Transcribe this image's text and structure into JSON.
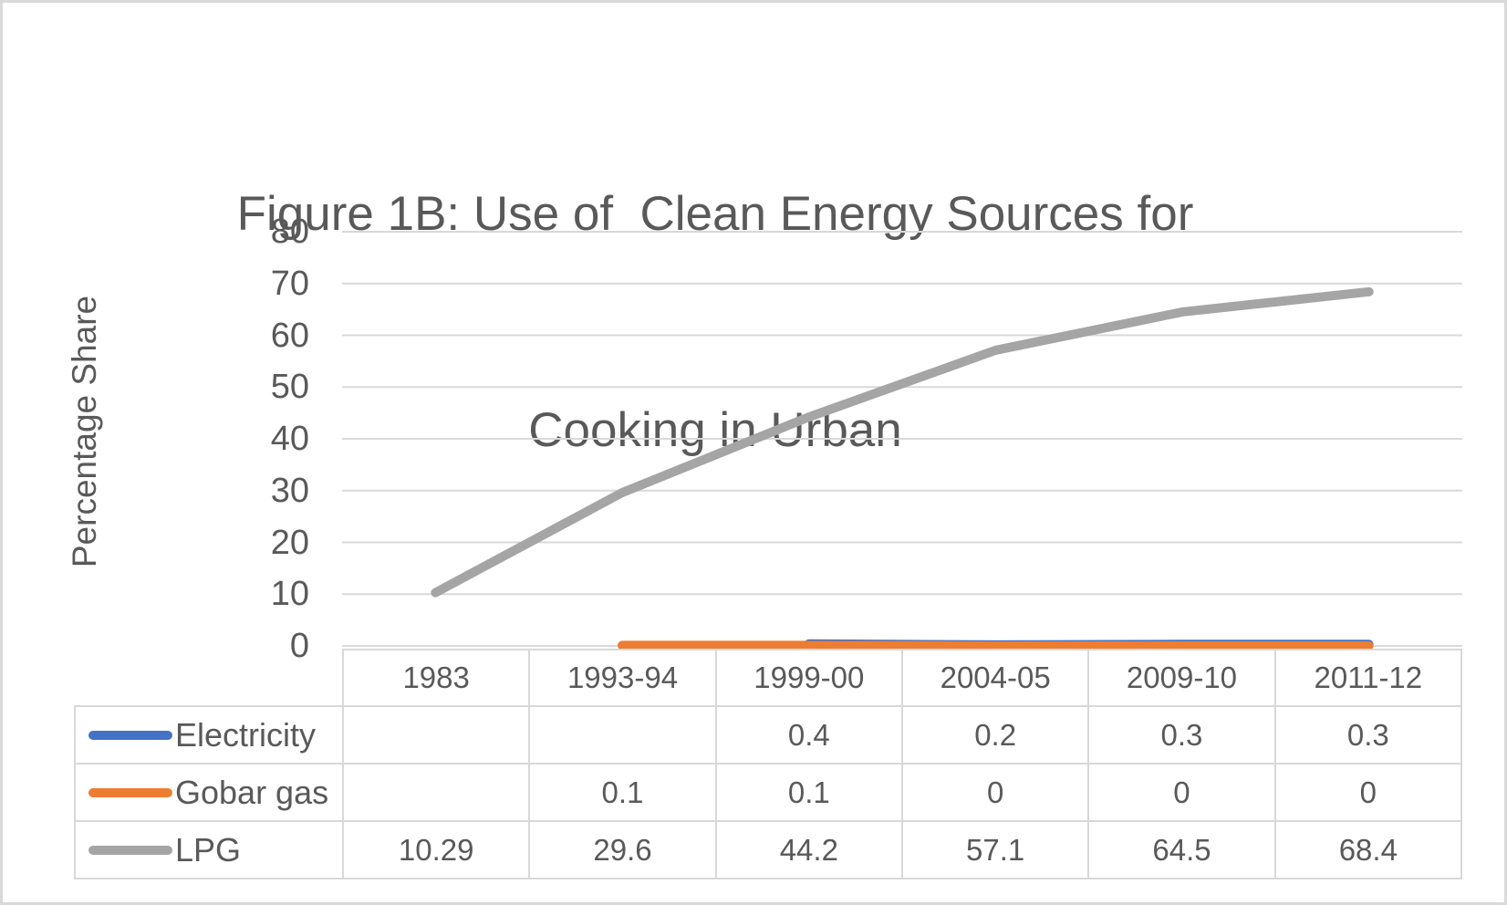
{
  "title": {
    "line1": "Figure 1B: Use of  Clean Energy Sources for",
    "line2": "Cooking in Urban"
  },
  "chart_data": {
    "type": "line",
    "title": "Figure 1B: Use of  Clean Energy Sources for Cooking in Urban",
    "xlabel": "",
    "ylabel": "Percentage Share",
    "ylim": [
      0,
      80
    ],
    "yticks": [
      0,
      10,
      20,
      30,
      40,
      50,
      60,
      70,
      80
    ],
    "grid": true,
    "legend_position": "data-table-left",
    "categories": [
      "1983",
      "1993-94",
      "1999-00",
      "2004-05",
      "2009-10",
      "2011-12"
    ],
    "series": [
      {
        "name": "Electricity",
        "color": "#4472C4",
        "values": [
          null,
          null,
          0.4,
          0.2,
          0.3,
          0.3
        ],
        "display": [
          "",
          "",
          "0.4",
          "0.2",
          "0.3",
          "0.3"
        ]
      },
      {
        "name": "Gobar gas",
        "color": "#ED7D31",
        "values": [
          null,
          0.1,
          0.1,
          0,
          0,
          0
        ],
        "display": [
          "",
          "0.1",
          "0.1",
          "0",
          "0",
          "0"
        ]
      },
      {
        "name": "LPG",
        "color": "#A5A5A5",
        "values": [
          10.29,
          29.6,
          44.2,
          57.1,
          64.5,
          68.4
        ],
        "display": [
          "10.29",
          "29.6",
          "44.2",
          "57.1",
          "64.5",
          "68.4"
        ]
      }
    ]
  },
  "colors": {
    "text": "#595959",
    "gridline": "#D9D9D9",
    "table_border": "#D8D8D8",
    "frame_border": "#D9D9D9",
    "background": "#FFFFFF"
  }
}
